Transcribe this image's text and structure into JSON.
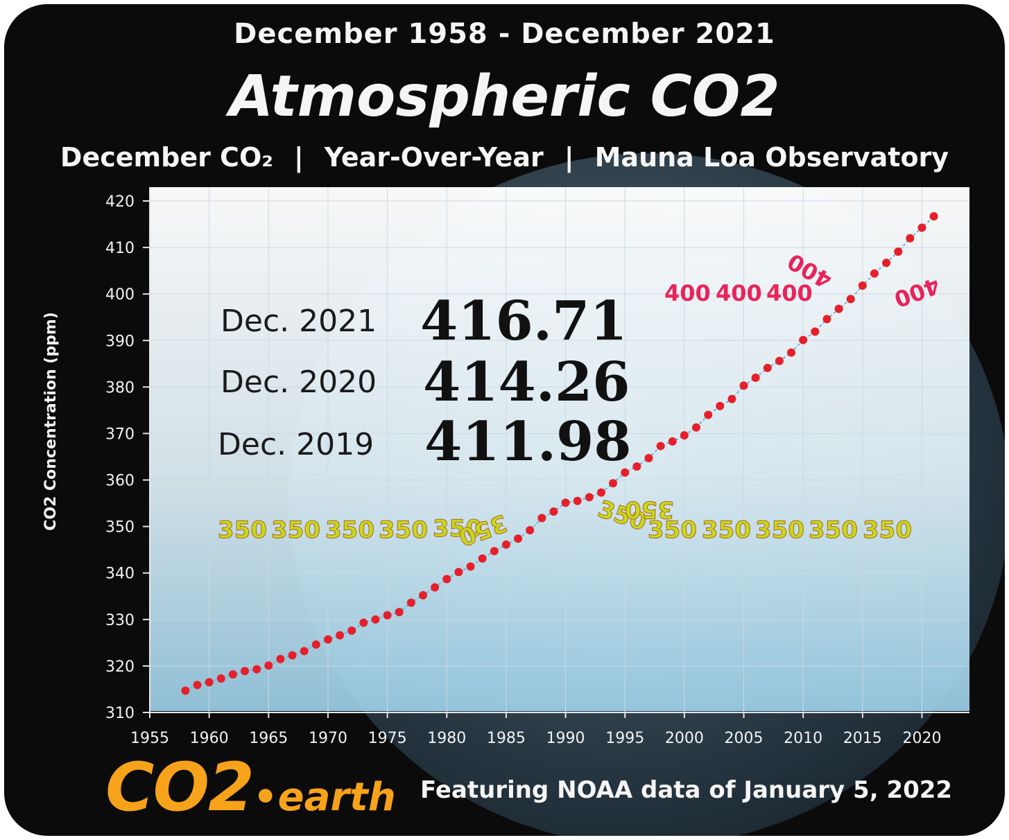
{
  "header": {
    "date_range": "December 1958 - December 2021",
    "title": "Atmospheric CO2",
    "subtitle_parts": [
      "December CO₂",
      "Year-Over-Year",
      "Mauna Loa Observatory"
    ],
    "separator": "|"
  },
  "footer": {
    "logo_co2": "CO2",
    "logo_dot": "•",
    "logo_earth": "earth",
    "note": "Featuring NOAA data of January 5, 2022"
  },
  "highlights": [
    {
      "label": "Dec. 2021",
      "value": "416.71"
    },
    {
      "label": "Dec. 2020",
      "value": "414.26"
    },
    {
      "label": "Dec. 2019",
      "value": "411.98"
    }
  ],
  "colors": {
    "background": "#0b0b0b",
    "plot_top": "#ffffff",
    "plot_bottom": "#a9d8ef",
    "point": "#e5202a",
    "line": "#6fb3e0",
    "label_350": "#c8d81e",
    "label_400": "#e8245a",
    "logo": "#f7a21b"
  },
  "chart_data": {
    "type": "scatter",
    "title": "Atmospheric CO2",
    "subtitle": "December CO₂ | Year-Over-Year | Mauna Loa Observatory",
    "xlabel": "",
    "ylabel": "CO2 Concentration (ppm)",
    "xlim": [
      1955,
      2024
    ],
    "ylim": [
      310,
      420
    ],
    "x_ticks": [
      "1955",
      "1960",
      "1965",
      "1970",
      "1975",
      "1980",
      "1985",
      "1990",
      "1995",
      "2000",
      "2005",
      "2010",
      "2015",
      "2020"
    ],
    "y_ticks": [
      "310",
      "320",
      "330",
      "340",
      "350",
      "360",
      "370",
      "380",
      "390",
      "400",
      "410",
      "420"
    ],
    "grid": true,
    "series": [
      {
        "x": [
          1958,
          1959,
          1960,
          1961,
          1962,
          1963,
          1964,
          1965,
          1966,
          1967,
          1968,
          1969,
          1970,
          1971,
          1972,
          1973,
          1974,
          1975,
          1976,
          1977,
          1978,
          1979,
          1980,
          1981,
          1982,
          1983,
          1984,
          1985,
          1986,
          1987,
          1988,
          1989,
          1990,
          1991,
          1992,
          1993,
          1994,
          1995,
          1996,
          1997,
          1998,
          1999,
          2000,
          2001,
          2002,
          2003,
          2004,
          2005,
          2006,
          2007,
          2008,
          2009,
          2010,
          2011,
          2012,
          2013,
          2014,
          2015,
          2016,
          2017,
          2018,
          2019,
          2020,
          2021
        ],
        "y": [
          314.7,
          315.9,
          316.5,
          317.3,
          318.2,
          318.9,
          319.3,
          320.1,
          321.5,
          322.3,
          323.2,
          324.6,
          325.7,
          326.6,
          327.6,
          329.3,
          330.0,
          330.9,
          331.6,
          333.6,
          335.2,
          336.9,
          338.7,
          340.2,
          341.4,
          343.1,
          344.7,
          346.1,
          347.4,
          349.2,
          351.8,
          353.2,
          355.1,
          355.5,
          356.3,
          357.3,
          359.3,
          361.6,
          362.9,
          364.7,
          367.3,
          368.3,
          369.6,
          371.3,
          374.0,
          375.9,
          377.4,
          380.3,
          382.0,
          384.1,
          385.6,
          387.4,
          390.1,
          391.9,
          394.6,
          396.8,
          398.9,
          401.8,
          404.4,
          406.7,
          409.1,
          411.98,
          414.26,
          416.71
        ]
      }
    ],
    "annotations": {
      "label_350": "350",
      "label_400": "400"
    }
  }
}
